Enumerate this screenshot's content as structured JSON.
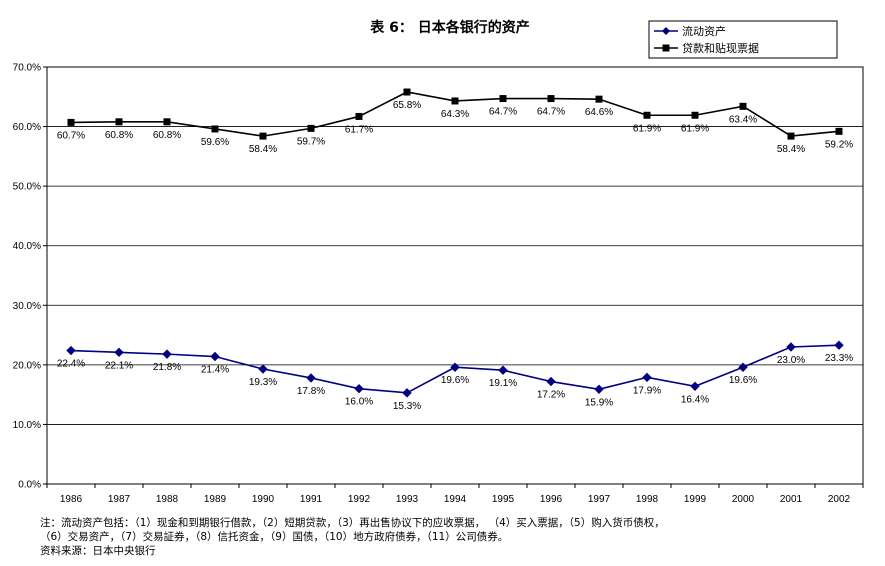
{
  "chart_data": {
    "type": "line",
    "title": "表 6： 日本各银行的资产",
    "xlabel": "",
    "ylabel": "",
    "ylim": [
      0,
      70
    ],
    "yticks": [
      "0.0%",
      "10.0%",
      "20.0%",
      "30.0%",
      "40.0%",
      "50.0%",
      "60.0%",
      "70.0%"
    ],
    "grid": true,
    "legend_position": "top-right",
    "categories": [
      "1986",
      "1987",
      "1988",
      "1989",
      "1990",
      "1991",
      "1992",
      "1993",
      "1994",
      "1995",
      "1996",
      "1997",
      "1998",
      "1999",
      "2000",
      "2001",
      "2002"
    ],
    "series": [
      {
        "name": "流动资产",
        "marker": "diamond",
        "color": "#000080",
        "values": [
          22.4,
          22.1,
          21.8,
          21.4,
          19.3,
          17.8,
          16.0,
          15.3,
          19.6,
          19.1,
          17.2,
          15.9,
          17.9,
          16.4,
          19.6,
          23.0,
          23.3
        ],
        "labels": [
          "22.4%",
          "22.1%",
          "21.8%",
          "21.4%",
          "19.3%",
          "17.8%",
          "16.0%",
          "15.3%",
          "19.6%",
          "19.1%",
          "17.2%",
          "15.9%",
          "17.9%",
          "16.4%",
          "19.6%",
          "23.0%",
          "23.3%"
        ]
      },
      {
        "name": "贷款和贴现票据",
        "marker": "square",
        "color": "#000000",
        "values": [
          60.7,
          60.8,
          60.8,
          59.6,
          58.4,
          59.7,
          61.7,
          65.8,
          64.3,
          64.7,
          64.7,
          64.6,
          61.9,
          61.9,
          63.4,
          58.4,
          59.2
        ],
        "labels": [
          "60.7%",
          "60.8%",
          "60.8%",
          "59.6%",
          "58.4%",
          "59.7%",
          "61.7%",
          "65.8%",
          "64.3%",
          "64.7%",
          "64.7%",
          "64.6%",
          "61.9%",
          "61.9%",
          "63.4%",
          "58.4%",
          "59.2%"
        ]
      }
    ]
  },
  "notes": {
    "line1": "注：流动资产包括：（1）现金和到期银行借款，（2）短期贷款，（3）再出售协议下的应收票据，   （4）买入票据，（5）购入货币债权，",
    "line2": "（6）交易资产，（7）交易証券，（8）信托资金，（9）国债，（10）地方政府债券，（11）公司债券。",
    "source": "资料来源：日本中央银行"
  }
}
